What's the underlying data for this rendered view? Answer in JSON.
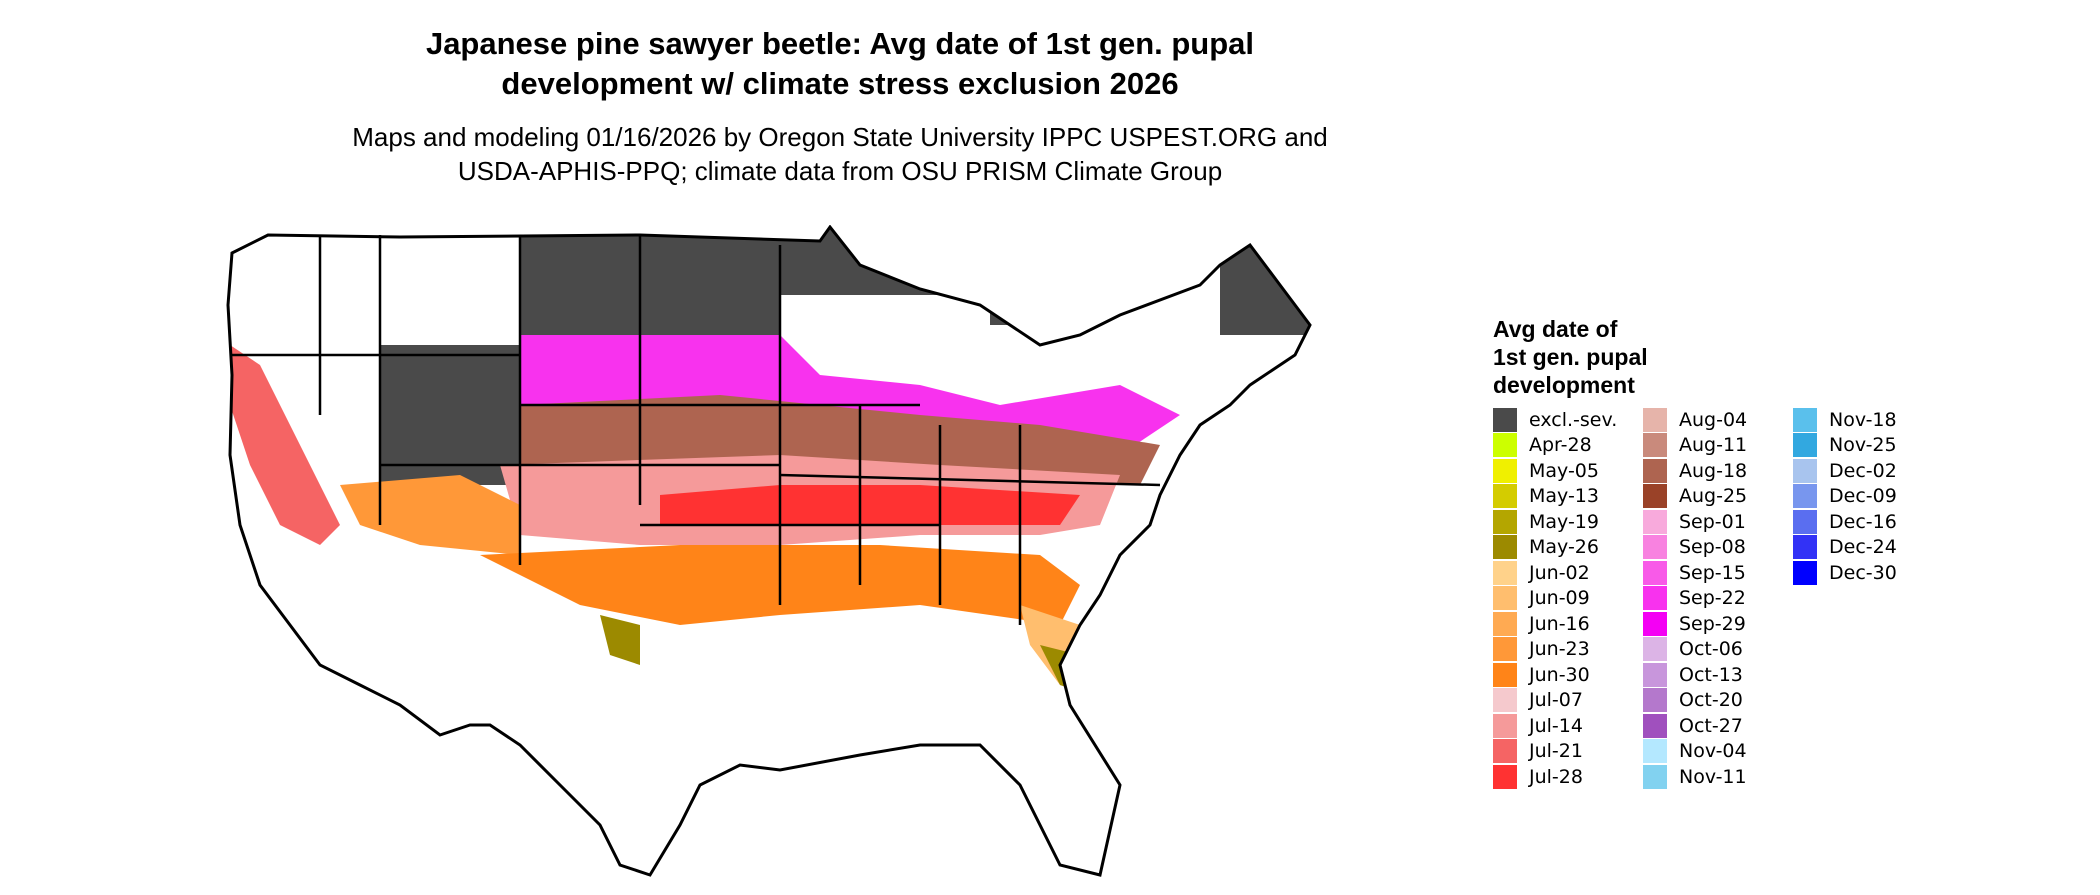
{
  "title_line1": "Japanese pine sawyer beetle: Avg date of 1st gen. pupal",
  "title_line2": "development w/ climate stress exclusion 2026",
  "subtitle_line1": "Maps and modeling 01/16/2026 by Oregon State University IPPC USPEST.ORG and",
  "subtitle_line2": "USDA-APHIS-PPQ; climate data from OSU PRISM Climate Group",
  "legend": {
    "title_line1": "Avg date of",
    "title_line2": "1st gen. pupal",
    "title_line3": "development",
    "columns": [
      [
        {
          "label": "excl.-sev.",
          "color": "#4a4a4a"
        },
        {
          "label": "Apr-28",
          "color": "#ccff00"
        },
        {
          "label": "May-05",
          "color": "#f0f000"
        },
        {
          "label": "May-13",
          "color": "#d4cc00"
        },
        {
          "label": "May-19",
          "color": "#b4a600"
        },
        {
          "label": "May-26",
          "color": "#9c8a00"
        },
        {
          "label": "Jun-02",
          "color": "#ffd28a"
        },
        {
          "label": "Jun-09",
          "color": "#ffbe6e"
        },
        {
          "label": "Jun-16",
          "color": "#ffaa52"
        },
        {
          "label": "Jun-23",
          "color": "#ff9838"
        },
        {
          "label": "Jun-30",
          "color": "#ff8418"
        },
        {
          "label": "Jul-07",
          "color": "#f5c9cd"
        },
        {
          "label": "Jul-14",
          "color": "#f59a9a"
        },
        {
          "label": "Jul-21",
          "color": "#f56464"
        },
        {
          "label": "Jul-28",
          "color": "#ff3232"
        }
      ],
      [
        {
          "label": "Aug-04",
          "color": "#e6b4aa"
        },
        {
          "label": "Aug-11",
          "color": "#c98a7c"
        },
        {
          "label": "Aug-18",
          "color": "#ae6450"
        },
        {
          "label": "Aug-25",
          "color": "#9a4228"
        },
        {
          "label": "Sep-01",
          "color": "#f8aadc"
        },
        {
          "label": "Sep-08",
          "color": "#f882e0"
        },
        {
          "label": "Sep-15",
          "color": "#f85ae8"
        },
        {
          "label": "Sep-22",
          "color": "#f832ee"
        },
        {
          "label": "Sep-29",
          "color": "#f400f4"
        },
        {
          "label": "Oct-06",
          "color": "#dcb4e6"
        },
        {
          "label": "Oct-13",
          "color": "#c896dc"
        },
        {
          "label": "Oct-20",
          "color": "#b478cc"
        },
        {
          "label": "Oct-27",
          "color": "#a050be"
        },
        {
          "label": "Nov-04",
          "color": "#b4e8ff"
        },
        {
          "label": "Nov-11",
          "color": "#82d2f0"
        }
      ],
      [
        {
          "label": "Nov-18",
          "color": "#5ac0ec"
        },
        {
          "label": "Nov-25",
          "color": "#32a8e0"
        },
        {
          "label": "Dec-02",
          "color": "#a8c4ee"
        },
        {
          "label": "Dec-09",
          "color": "#7896ee"
        },
        {
          "label": "Dec-16",
          "color": "#5a6ef0"
        },
        {
          "label": "Dec-24",
          "color": "#3232f6"
        },
        {
          "label": "Dec-30",
          "color": "#0000ff"
        }
      ]
    ]
  }
}
